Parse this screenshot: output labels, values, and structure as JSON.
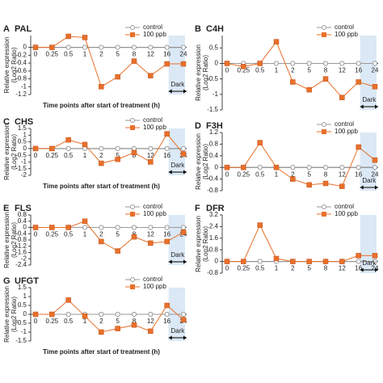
{
  "chart_data": [
    {
      "type": "line",
      "panel": "A",
      "title": "PAL",
      "ylabel": [
        "Relative expression",
        "(Log2 Ratio)"
      ],
      "xlabel": "Time points after start of treatment (h)",
      "annotation": "Dark",
      "categories": [
        "0",
        "0.25",
        "0.5",
        "1",
        "2",
        "5",
        "8",
        "12",
        "16",
        "24"
      ],
      "series": [
        {
          "name": "control",
          "color": "#9a9a9a",
          "values": [
            0,
            0,
            0,
            0,
            0,
            0,
            0,
            0,
            0,
            0
          ]
        },
        {
          "name": "100 ppb",
          "color": "#e8702a",
          "values": [
            0,
            0,
            0.28,
            0.25,
            -1.0,
            -0.75,
            -0.35,
            -0.72,
            -0.42,
            -0.42
          ]
        }
      ],
      "ylim": [
        -1.2,
        0.3
      ],
      "yticks": [
        0,
        -0.2,
        -0.4,
        -0.6,
        -0.8,
        -1,
        -1.2
      ]
    },
    {
      "type": "line",
      "panel": "B",
      "title": "C4H",
      "ylabel": [
        "Relative expression",
        "(Log2 Ratio)"
      ],
      "annotation": "Dark",
      "categories": [
        "0",
        "0.25",
        "0.5",
        "1",
        "2",
        "5",
        "8",
        "12",
        "16",
        "24"
      ],
      "series": [
        {
          "name": "control",
          "color": "#9a9a9a",
          "values": [
            0,
            0,
            0,
            0,
            0,
            0,
            0,
            0,
            0,
            0
          ]
        },
        {
          "name": "100 ppb",
          "color": "#e8702a",
          "values": [
            0,
            -0.1,
            0,
            0.7,
            -0.6,
            -0.85,
            -0.5,
            -1.1,
            -0.6,
            -0.75
          ]
        }
      ],
      "ylim": [
        -1.5,
        0.9
      ],
      "yticks": [
        0.5,
        0,
        -0.5,
        -1,
        -1.5
      ]
    },
    {
      "type": "line",
      "panel": "C",
      "title": "CHS",
      "ylabel": [
        "Relative expression",
        "(Log2 Ratio)"
      ],
      "xlabel": "Time points after start of treatment (h)",
      "annotation": "Dark",
      "categories": [
        "0",
        "0.25",
        "0.5",
        "1",
        "2",
        "5",
        "8",
        "12",
        "16",
        "24"
      ],
      "series": [
        {
          "name": "control",
          "color": "#9a9a9a",
          "values": [
            0,
            0,
            0,
            0,
            0,
            0,
            0,
            0,
            0,
            0
          ]
        },
        {
          "name": "100 ppb",
          "color": "#e8702a",
          "values": [
            0,
            0,
            0.65,
            0.3,
            -1.1,
            -0.8,
            -0.3,
            -1.0,
            1.1,
            -0.4
          ]
        }
      ],
      "ylim": [
        -2,
        1.5
      ],
      "yticks": [
        1.5,
        1,
        0.5,
        0,
        -0.5,
        -1,
        -1.5,
        -2
      ]
    },
    {
      "type": "line",
      "panel": "D",
      "title": "F3H",
      "ylabel": [
        "Relative expression",
        "(Log2 Ratio)"
      ],
      "annotation": "Dark",
      "categories": [
        "0",
        "0.25",
        "0.5",
        "1",
        "2",
        "5",
        "8",
        "12",
        "16",
        "24"
      ],
      "series": [
        {
          "name": "control",
          "color": "#9a9a9a",
          "values": [
            0,
            0,
            0,
            0,
            0,
            0,
            0,
            0,
            0,
            0
          ]
        },
        {
          "name": "100 ppb",
          "color": "#e8702a",
          "values": [
            0,
            0,
            0.85,
            0,
            -0.4,
            -0.6,
            -0.55,
            -0.65,
            0.7,
            0.25
          ]
        }
      ],
      "ylim": [
        -0.8,
        1.2
      ],
      "yticks": [
        1.2,
        0.8,
        0.4,
        0,
        -0.4,
        -0.8
      ]
    },
    {
      "type": "line",
      "panel": "E",
      "title": "FLS",
      "ylabel": [
        "Relative expression",
        "(Log2 Ratio)"
      ],
      "annotation": "Dark",
      "categories": [
        "0",
        "0.25",
        "0.5",
        "1",
        "2",
        "5",
        "8",
        "12",
        "16",
        "24"
      ],
      "series": [
        {
          "name": "control",
          "color": "#9a9a9a",
          "values": [
            0,
            0,
            0,
            0,
            0,
            0,
            0,
            0,
            0,
            0
          ]
        },
        {
          "name": "100 ppb",
          "color": "#e8702a",
          "values": [
            0,
            0,
            0,
            0.4,
            -0.9,
            -1.5,
            -0.6,
            -1.0,
            -0.9,
            -0.3
          ]
        }
      ],
      "ylim": [
        -2.4,
        0.8
      ],
      "yticks": [
        0.8,
        0.4,
        0,
        -0.4,
        -0.8,
        -1.2,
        -1.6,
        -2,
        -2.4
      ]
    },
    {
      "type": "line",
      "panel": "F",
      "title": "DFR",
      "ylabel": [
        "Relative expression",
        "(Log2 Ratio)"
      ],
      "annotation": "Dark",
      "categories": [
        "0",
        "0.25",
        "0.5",
        "1",
        "2",
        "5",
        "8",
        "12",
        "16",
        "24"
      ],
      "series": [
        {
          "name": "control",
          "color": "#9a9a9a",
          "values": [
            0,
            0,
            0,
            0,
            0,
            0,
            0,
            0,
            0,
            0
          ]
        },
        {
          "name": "100 ppb",
          "color": "#e8702a",
          "values": [
            0,
            0,
            2.5,
            0.2,
            0,
            0,
            0,
            0,
            0.4,
            0.4
          ]
        }
      ],
      "ylim": [
        -0.8,
        3.2
      ],
      "yticks": [
        3.2,
        2.4,
        1.6,
        0.8,
        0,
        -0.8
      ]
    },
    {
      "type": "line",
      "panel": "G",
      "title": "UFGT",
      "ylabel": [
        "Relative expression",
        "(Log2 Ratio)"
      ],
      "xlabel": "Time points after start of treatment (h)",
      "annotation": "Dark",
      "categories": [
        "0",
        "0.25",
        "0.5",
        "1",
        "2",
        "5",
        "8",
        "12",
        "16",
        "24"
      ],
      "series": [
        {
          "name": "control",
          "color": "#9a9a9a",
          "values": [
            0,
            0,
            0,
            0,
            0,
            0,
            0,
            0,
            0,
            0
          ]
        },
        {
          "name": "100 ppb",
          "color": "#e8702a",
          "values": [
            0,
            0,
            0.8,
            -0.1,
            -1.0,
            -0.8,
            -0.6,
            -0.95,
            0.5,
            -0.3
          ]
        }
      ],
      "ylim": [
        -1.5,
        1.5
      ],
      "yticks": [
        1.5,
        1,
        0.5,
        0,
        -0.5,
        -1,
        -1.5
      ]
    }
  ]
}
